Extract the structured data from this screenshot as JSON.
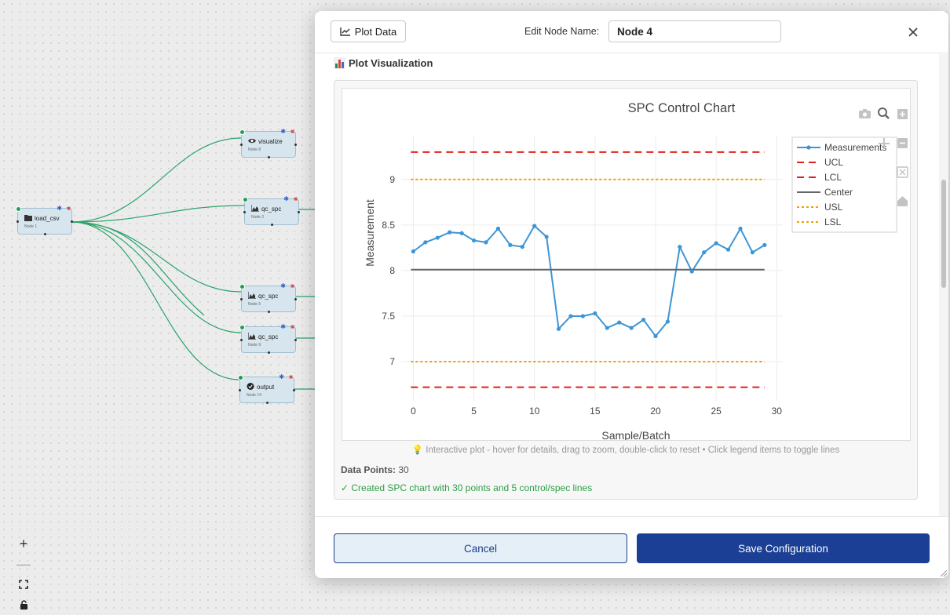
{
  "canvas": {
    "nodes": [
      {
        "id": "n1",
        "label": "load_csv",
        "sub": "Node 1",
        "icon": "folder-icon"
      },
      {
        "id": "n8",
        "label": "visualize",
        "sub": "Node 8",
        "icon": "eye-icon"
      },
      {
        "id": "n2",
        "label": "qc_spc",
        "sub": "Node 2",
        "icon": "area-chart-icon"
      },
      {
        "id": "n5",
        "label": "qc_spc",
        "sub": "Node 5",
        "icon": "area-chart-icon"
      },
      {
        "id": "n9",
        "label": "qc_spc",
        "sub": "Node 9",
        "icon": "area-chart-icon"
      },
      {
        "id": "n14",
        "label": "output",
        "sub": "Node 14",
        "icon": "check-circle-icon"
      }
    ],
    "zoom_controls": {
      "zoom_in": "+",
      "zoom_out": "—",
      "fit": "fit-view-icon",
      "lock": "lock-icon"
    }
  },
  "modal": {
    "plot_button_label": "Plot Data",
    "edit_name_label": "Edit Node Name:",
    "node_name_value": "Node 4",
    "section_title": "Plot Visualization",
    "hint": "💡 Interactive plot - hover for details, drag to zoom, double-click to reset • Click legend items to toggle lines",
    "data_points_label": "Data Points:",
    "data_points_value": "30",
    "status": "✓ Created SPC chart with 30 points and 5 control/spec lines",
    "cancel_label": "Cancel",
    "save_label": "Save Configuration"
  },
  "chart_data": {
    "type": "line",
    "title": "SPC Control Chart",
    "xlabel": "Sample/Batch",
    "ylabel": "Measurement",
    "xlim": [
      -1,
      30.5
    ],
    "ylim": [
      6.57,
      9.48
    ],
    "xticks": [
      0,
      5,
      10,
      15,
      20,
      25,
      30
    ],
    "yticks": [
      7,
      7.5,
      8,
      8.5,
      9
    ],
    "grid": true,
    "legend_position": "top-right",
    "series": [
      {
        "name": "Measurements",
        "style": "lines+markers",
        "color": "#3d95d6",
        "x": [
          0,
          1,
          2,
          3,
          4,
          5,
          6,
          7,
          8,
          9,
          10,
          11,
          12,
          13,
          14,
          15,
          16,
          17,
          18,
          19,
          20,
          21,
          22,
          23,
          24,
          25,
          26,
          27,
          28,
          29
        ],
        "y": [
          8.21,
          8.31,
          8.36,
          8.42,
          8.41,
          8.33,
          8.31,
          8.46,
          8.28,
          8.26,
          8.49,
          8.37,
          7.36,
          7.5,
          7.5,
          7.53,
          7.37,
          7.43,
          7.37,
          7.46,
          7.28,
          7.44,
          8.26,
          7.99,
          8.2,
          8.3,
          8.23,
          8.46,
          8.2,
          8.28
        ]
      },
      {
        "name": "UCL",
        "style": "dash",
        "color": "#e0201b",
        "y": 9.3
      },
      {
        "name": "LCL",
        "style": "dash",
        "color": "#e0201b",
        "y": 6.72
      },
      {
        "name": "Center",
        "style": "solid",
        "color": "#666666",
        "y": 8.01
      },
      {
        "name": "USL",
        "style": "dot",
        "color": "#f0a000",
        "y": 9.0
      },
      {
        "name": "LSL",
        "style": "dot",
        "color": "#f0a000",
        "y": 7.0
      }
    ],
    "line_x_range": [
      -0.2,
      29
    ]
  }
}
